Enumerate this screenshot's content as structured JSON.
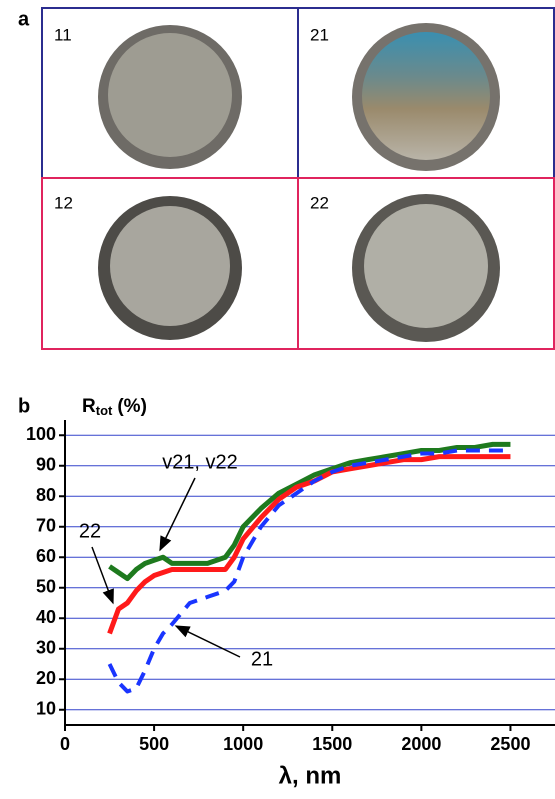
{
  "panel_a": {
    "label": "a",
    "samples": [
      "11",
      "21",
      "12",
      "22"
    ]
  },
  "chart_data": {
    "type": "line",
    "panel_label": "b",
    "ylabel": {
      "main": "R",
      "sub": "tot",
      "unit": "(%)"
    },
    "xlabel": "λ, nm",
    "x": [
      250,
      300,
      350,
      400,
      450,
      500,
      550,
      600,
      700,
      800,
      900,
      950,
      1000,
      1100,
      1200,
      1300,
      1400,
      1500,
      1600,
      1700,
      1800,
      1900,
      2000,
      2100,
      2200,
      2300,
      2400,
      2500
    ],
    "series": [
      {
        "name": "v21, v22",
        "color": "#1e7a1e",
        "dashed": false,
        "values": [
          57,
          55,
          53,
          56,
          58,
          59,
          60,
          58,
          58,
          58,
          60,
          64,
          70,
          76,
          81,
          84,
          87,
          89,
          91,
          92,
          93,
          94,
          95,
          95,
          96,
          96,
          97,
          97
        ]
      },
      {
        "name": "22",
        "color": "#ff1a1a",
        "dashed": false,
        "values": [
          35,
          43,
          45,
          49,
          52,
          54,
          55,
          56,
          56,
          56,
          56,
          60,
          66,
          73,
          79,
          83,
          85,
          88,
          89,
          90,
          91,
          92,
          92,
          93,
          93,
          93,
          93,
          93
        ]
      },
      {
        "name": "21",
        "color": "#1a35ff",
        "dashed": true,
        "values": [
          25,
          19,
          16,
          17,
          23,
          30,
          35,
          38,
          45,
          47,
          49,
          52,
          60,
          70,
          77,
          81,
          85,
          88,
          90,
          91,
          92,
          93,
          94,
          94,
          95,
          95,
          95,
          95
        ]
      }
    ],
    "xlim": [
      0,
      2750
    ],
    "xticks": [
      0,
      500,
      1000,
      1500,
      2000,
      2500
    ],
    "ylim": [
      5,
      105
    ],
    "yticks": [
      10,
      20,
      30,
      40,
      50,
      60,
      70,
      80,
      90,
      100
    ],
    "grid": true,
    "grid_color": "#3344cc"
  }
}
